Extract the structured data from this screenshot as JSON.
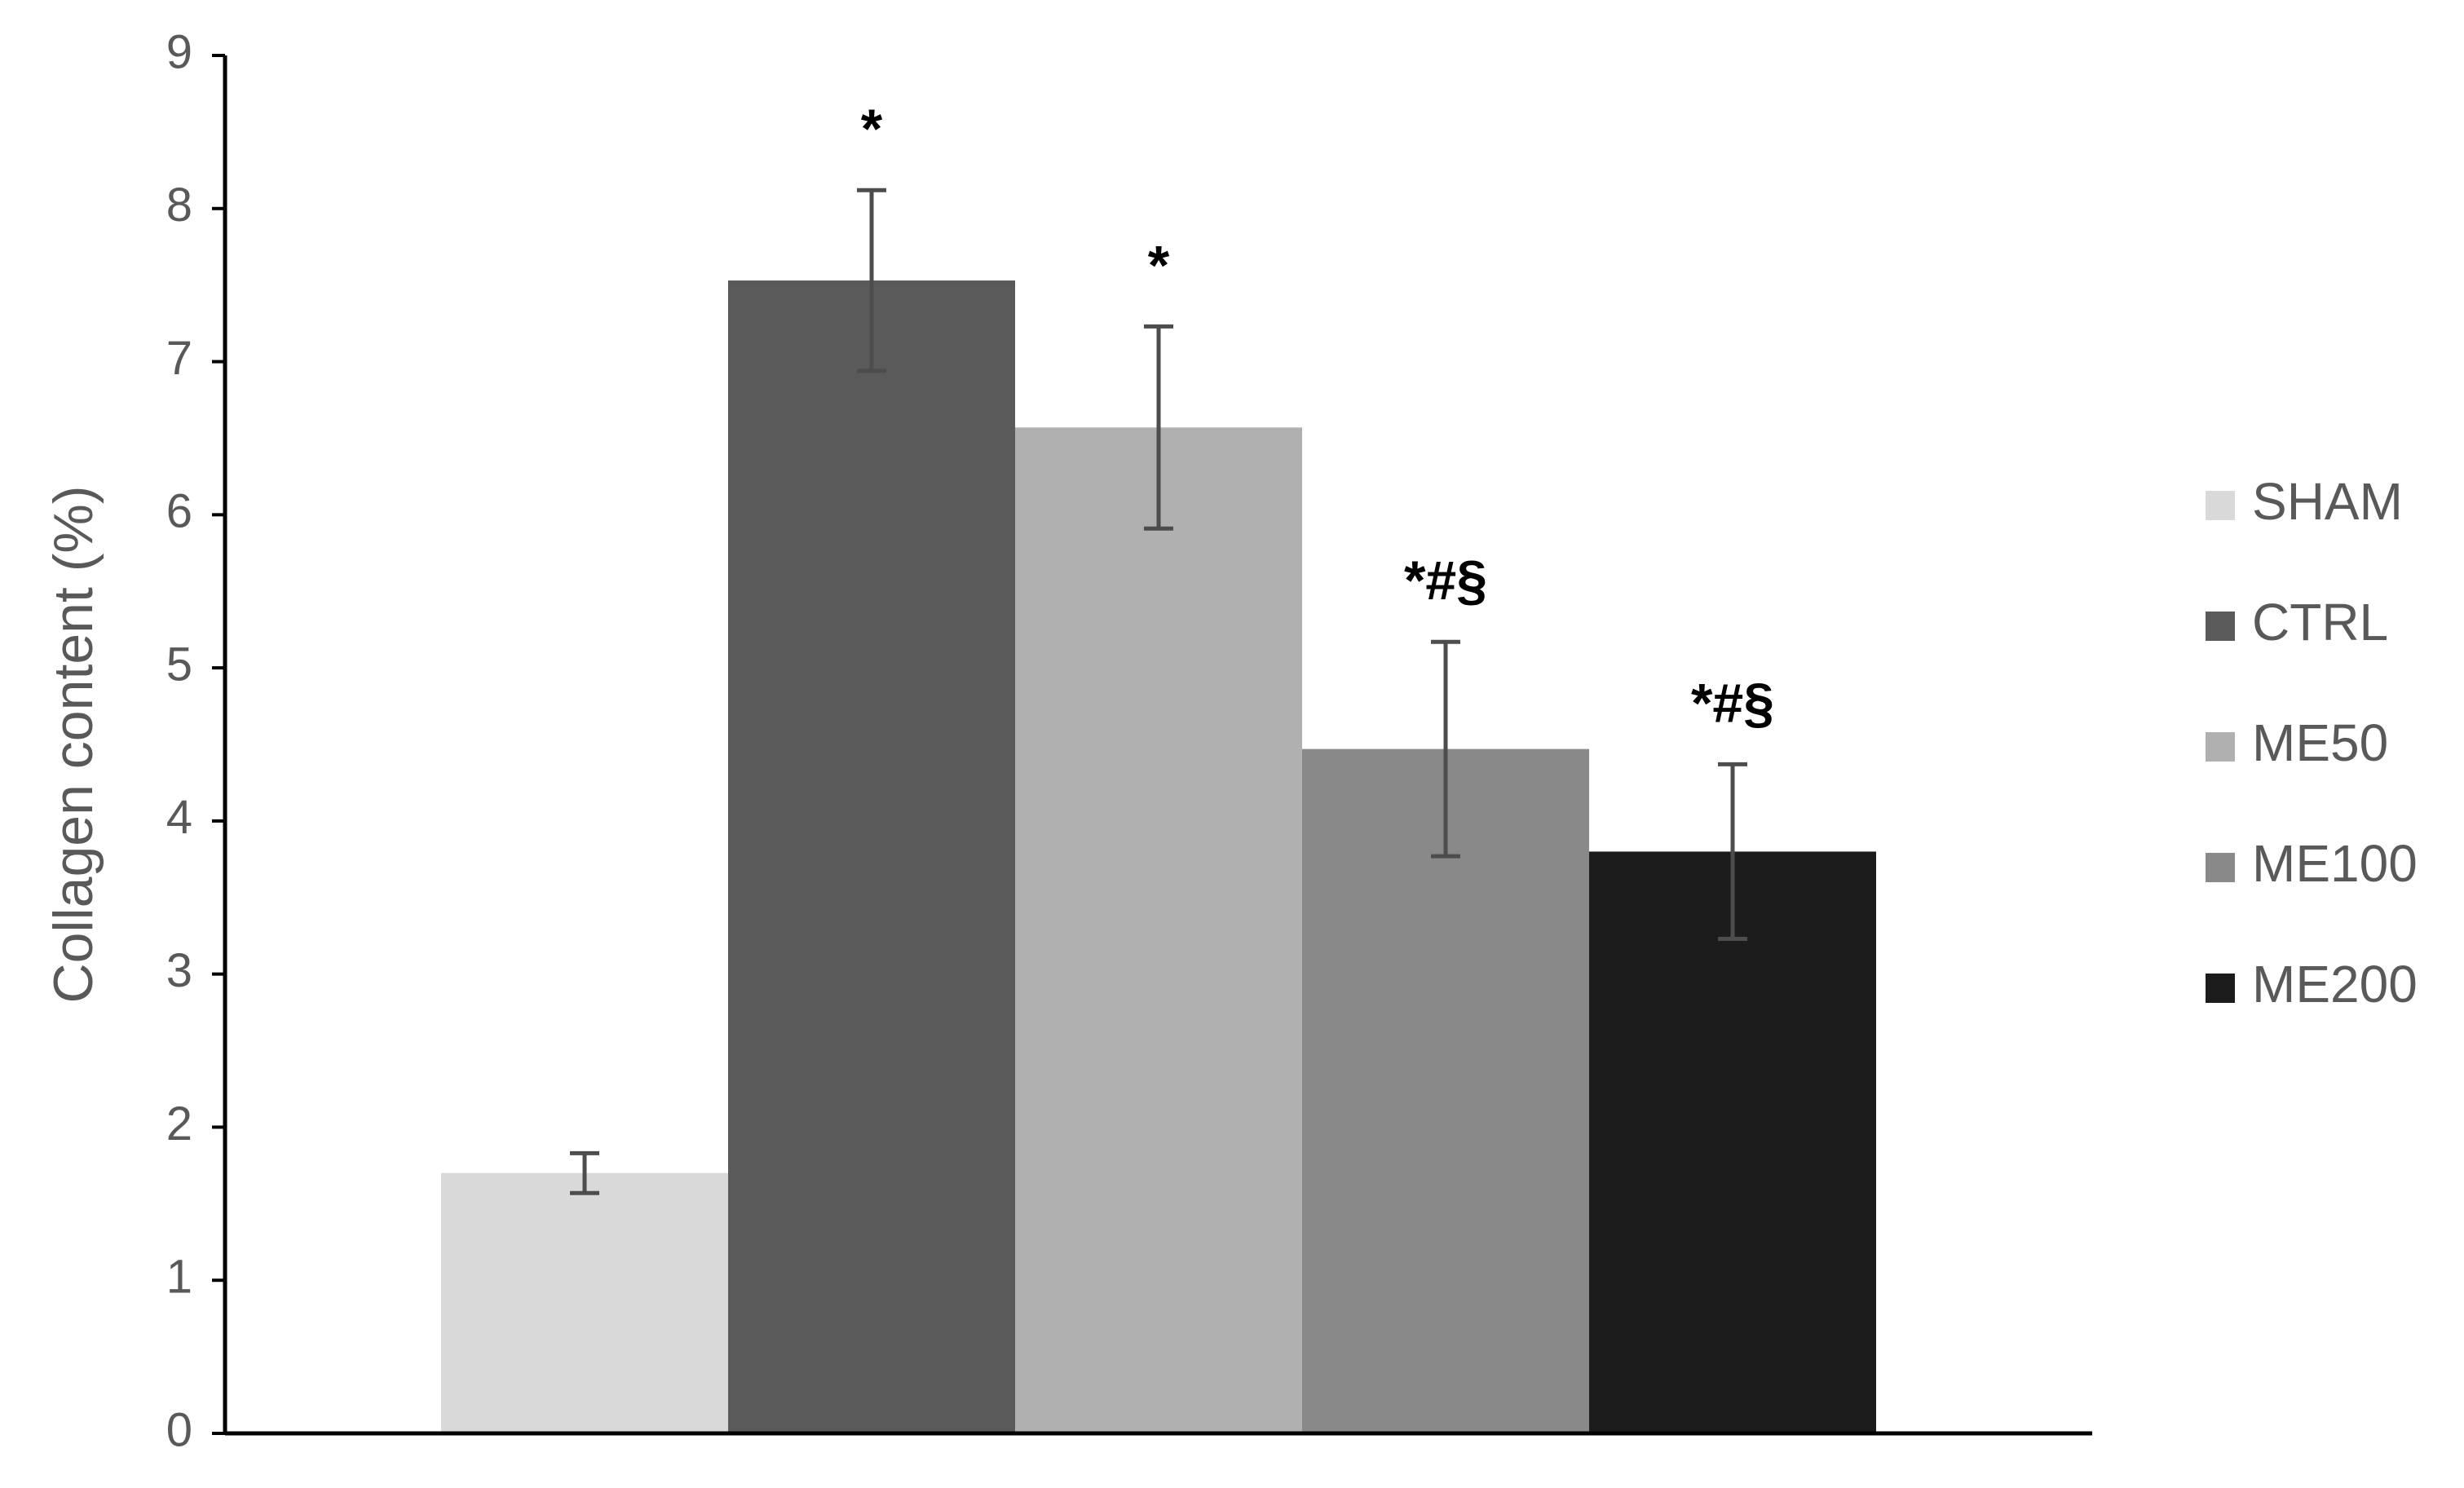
{
  "chart_data": {
    "type": "bar",
    "y_label": "Collagen content (%)",
    "ylim": [
      0,
      9
    ],
    "yticks": [
      0,
      1,
      2,
      3,
      4,
      5,
      6,
      7,
      8,
      9
    ],
    "grid": false,
    "legend": "right",
    "series": [
      {
        "name": "SHAM",
        "color": "#d9d9d9",
        "values": [
          1.7
        ],
        "errors": [
          0.13
        ]
      },
      {
        "name": "CTRL",
        "color": "#5a5a5a",
        "values": [
          7.53
        ],
        "errors": [
          0.59
        ],
        "annotation": "*"
      },
      {
        "name": "ME50",
        "color": "#b0b0b0",
        "values": [
          6.57
        ],
        "errors": [
          0.66
        ],
        "annotation": "*"
      },
      {
        "name": "ME100",
        "color": "#898989",
        "values": [
          4.47
        ],
        "errors": [
          0.7
        ],
        "annotation": "*#§"
      },
      {
        "name": "ME200",
        "color": "#1c1c1c",
        "values": [
          3.8
        ],
        "errors": [
          0.57
        ],
        "annotation": "*#§"
      }
    ]
  }
}
